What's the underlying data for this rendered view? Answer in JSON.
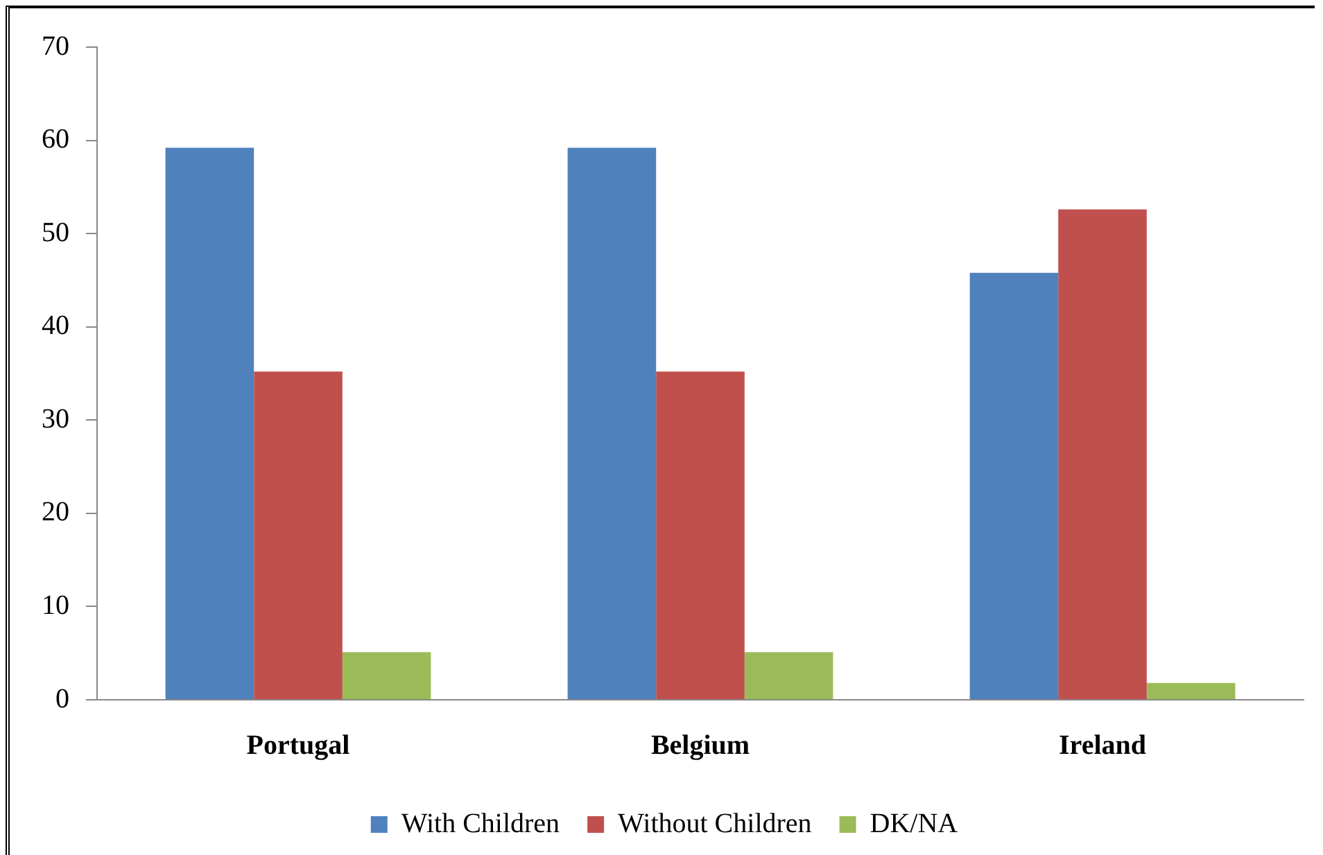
{
  "chart_data": {
    "type": "bar",
    "categories": [
      "Portugal",
      "Belgium",
      "Ireland"
    ],
    "series": [
      {
        "name": "With Children",
        "color": "#4f81bd",
        "values": [
          59.2,
          59.2,
          45.8
        ]
      },
      {
        "name": "Without Children",
        "color": "#c0504d",
        "values": [
          35.2,
          35.2,
          52.6
        ]
      },
      {
        "name": "DK/NA",
        "color": "#9bbb59",
        "values": [
          5.1,
          5.1,
          1.8
        ]
      }
    ],
    "ylim": [
      0,
      70
    ],
    "yticks": [
      0,
      10,
      20,
      30,
      40,
      50,
      60,
      70
    ],
    "grid": false,
    "legend": "bottom"
  }
}
